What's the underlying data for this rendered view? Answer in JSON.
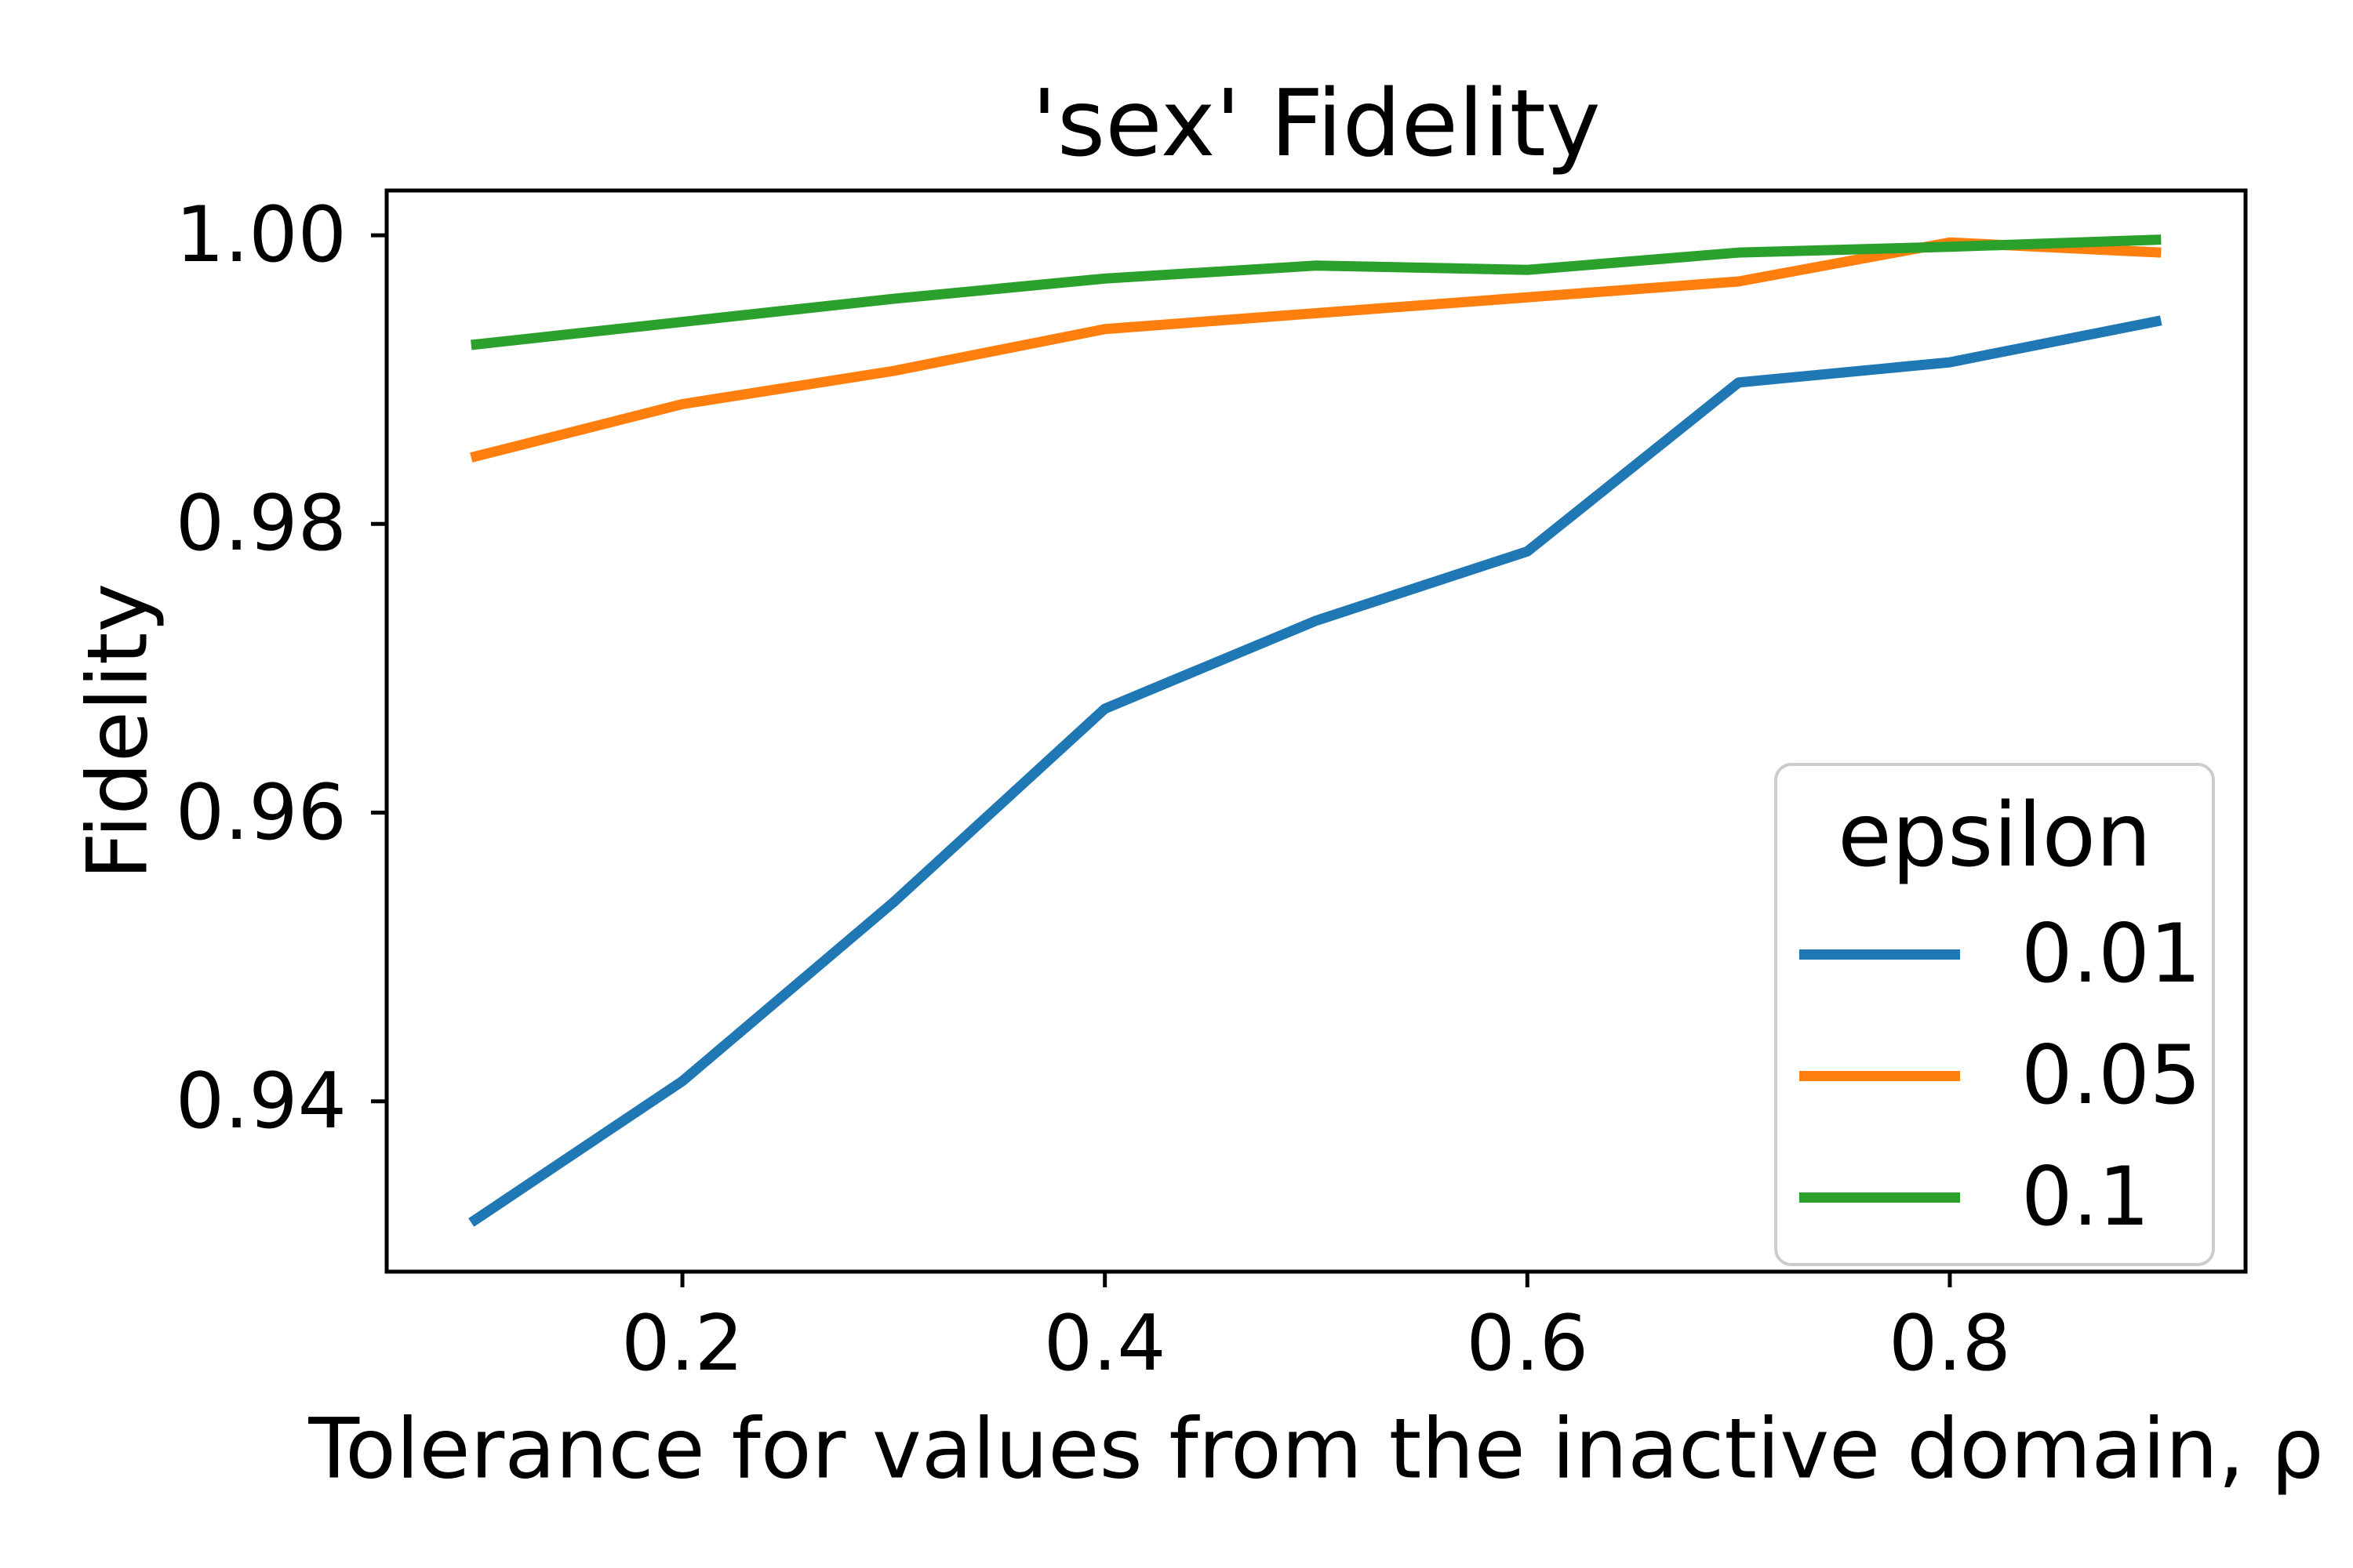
{
  "figure": {
    "background": "#ffffff",
    "text_color": "#000000",
    "frame_color": "#000000"
  },
  "chart_data": {
    "type": "line",
    "title": "'sex' Fidelity",
    "xlabel": "Tolerance for values from the inactive domain, ρ",
    "ylabel": "Fidelity",
    "x": [
      0.1,
      0.2,
      0.3,
      0.4,
      0.5,
      0.6,
      0.7,
      0.8,
      0.9
    ],
    "series": [
      {
        "name": "0.01",
        "color": "#1f77b4",
        "values": [
          0.9316,
          0.9414,
          0.9538,
          0.9672,
          0.9733,
          0.9781,
          0.9898,
          0.9912,
          0.9941
        ]
      },
      {
        "name": "0.05",
        "color": "#ff7f0e",
        "values": [
          0.9846,
          0.9883,
          0.9906,
          0.9935,
          0.9946,
          0.9957,
          0.9968,
          0.9995,
          0.9988
        ]
      },
      {
        "name": "0.1",
        "color": "#2ca02c",
        "values": [
          0.9924,
          0.994,
          0.9956,
          0.997,
          0.9979,
          0.9976,
          0.9988,
          0.9992,
          0.9997
        ]
      }
    ],
    "xlim": [
      0.06,
      0.94
    ],
    "ylim": [
      0.9282,
      1.0031
    ],
    "xticks": [
      {
        "v": 0.2,
        "label": "0.2"
      },
      {
        "v": 0.4,
        "label": "0.4"
      },
      {
        "v": 0.6,
        "label": "0.6"
      },
      {
        "v": 0.8,
        "label": "0.8"
      }
    ],
    "yticks": [
      {
        "v": 1.0,
        "label": "1.00"
      },
      {
        "v": 0.98,
        "label": "0.98"
      },
      {
        "v": 0.96,
        "label": "0.96"
      },
      {
        "v": 0.94,
        "label": "0.94"
      }
    ],
    "grid": false,
    "legend": {
      "title": "epsilon",
      "position": "center right",
      "entries": [
        "0.01",
        "0.05",
        "0.1"
      ]
    }
  }
}
